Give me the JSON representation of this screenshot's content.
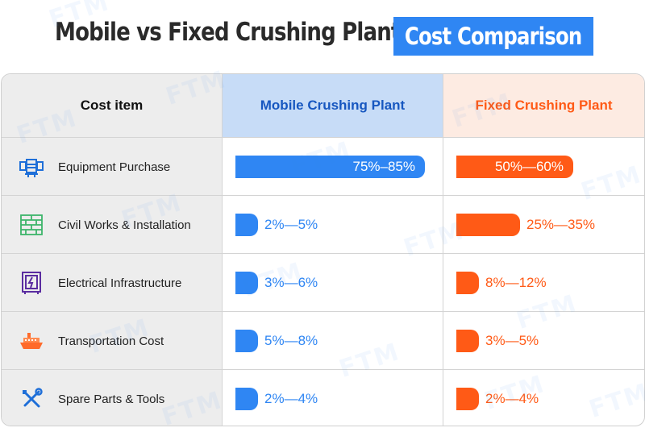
{
  "title": {
    "main": "Mobile vs Fixed Crushing Plant",
    "badge": "Cost Comparison"
  },
  "watermark": "FTM",
  "colors": {
    "mobile": "#2f86f3",
    "fixed": "#ff5a16",
    "mobile_header_bg": "#c7dcf7",
    "fixed_header_bg": "#fdebe2",
    "mobile_header_text": "#1757c0",
    "fixed_header_text": "#ff5a16",
    "label_bg": "#ededed",
    "badge_bg": "#2f86f3"
  },
  "chart_data": {
    "type": "bar",
    "title": "Mobile vs Fixed Crushing Plant Cost Comparison",
    "column_header": "Cost item",
    "categories": [
      "Equipment Purchase",
      "Civil Works & Installation",
      "Electrical Infrastructure",
      "Transportation Cost",
      "Spare Parts & Tools"
    ],
    "icons": [
      "equipment-icon",
      "brick-wall-icon",
      "electrical-cabinet-icon",
      "ship-icon",
      "tools-icon"
    ],
    "unit": "%",
    "xlim": [
      0,
      100
    ],
    "series": [
      {
        "name": "Mobile Crushing Plant",
        "ranges": [
          [
            75,
            85
          ],
          [
            2,
            5
          ],
          [
            3,
            6
          ],
          [
            5,
            8
          ],
          [
            2,
            4
          ]
        ],
        "labels": [
          "75%–85%",
          "2%—5%",
          "3%—6%",
          "5%—8%",
          "2%—4%"
        ]
      },
      {
        "name": "Fixed Crushing Plant",
        "ranges": [
          [
            50,
            60
          ],
          [
            25,
            35
          ],
          [
            8,
            12
          ],
          [
            3,
            5
          ],
          [
            2,
            4
          ]
        ],
        "labels": [
          "50%—60%",
          "25%—35%",
          "8%—12%",
          "3%—5%",
          "2%—4%"
        ]
      }
    ]
  }
}
